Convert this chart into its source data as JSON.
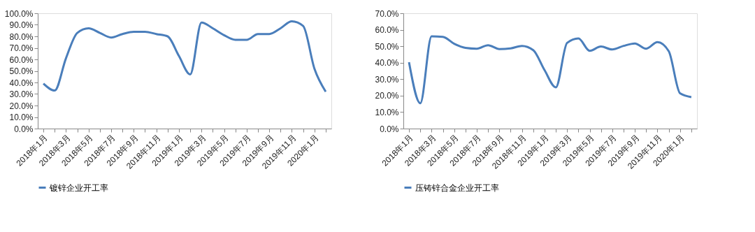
{
  "chart_data": [
    {
      "type": "line",
      "categories": [
        "2018年1月",
        null,
        "2018年3月",
        null,
        "2018年5月",
        null,
        "2018年7月",
        null,
        "2018年9月",
        null,
        "2018年11月",
        null,
        "2019年1月",
        null,
        "2019年3月",
        null,
        "2019年5月",
        null,
        "2019年7月",
        null,
        "2019年9月",
        null,
        "2019年11月",
        null,
        "2020年1月",
        null
      ],
      "series": [
        {
          "name": "镀锌企业开工率",
          "color": "#4a7ebb",
          "values": [
            39,
            33,
            61,
            83,
            87,
            83,
            79,
            82,
            84,
            84,
            82,
            80,
            63,
            47,
            92,
            87,
            81,
            77,
            77,
            82,
            82,
            87,
            93,
            89,
            52,
            32
          ]
        }
      ],
      "ylim": [
        0,
        100
      ],
      "yticks": [
        {
          "value": 0,
          "label": "0.0%"
        },
        {
          "value": 10,
          "label": "10.0%"
        },
        {
          "value": 20,
          "label": "20.0%"
        },
        {
          "value": 30,
          "label": "30.0%"
        },
        {
          "value": 40,
          "label": "40.0%"
        },
        {
          "value": 50,
          "label": "50.0%"
        },
        {
          "value": 60,
          "label": "60.0%"
        },
        {
          "value": 70,
          "label": "70.0%"
        },
        {
          "value": 80,
          "label": "80.0%"
        },
        {
          "value": 90,
          "label": "90.0%"
        },
        {
          "value": 100,
          "label": "100.0%"
        }
      ],
      "grid": false,
      "legend": "bottom",
      "marker": "none",
      "line_style": "solid"
    },
    {
      "type": "line",
      "categories": [
        "2018年1月",
        null,
        "2018年3月",
        null,
        "2018年5月",
        null,
        "2018年7月",
        null,
        "2018年9月",
        null,
        "2018年11月",
        null,
        "2019年1月",
        null,
        "2019年3月",
        null,
        "2019年5月",
        null,
        "2019年7月",
        null,
        "2019年9月",
        null,
        "2019年11月",
        null,
        "2020年1月",
        null
      ],
      "series": [
        {
          "name": "压铸锌合金企业开工率",
          "color": "#4a7ebb",
          "values": [
            40.3,
            15.4,
            56,
            55.7,
            51.5,
            49,
            48.5,
            50.6,
            48.3,
            48.7,
            50.2,
            47.6,
            35.5,
            25,
            52,
            54.7,
            47.2,
            49.8,
            48,
            50.2,
            51.7,
            48.5,
            52.5,
            47,
            21.4,
            19.1
          ]
        }
      ],
      "ylim": [
        0,
        70
      ],
      "yticks": [
        {
          "value": 0,
          "label": "0.0%"
        },
        {
          "value": 10,
          "label": "10.0%"
        },
        {
          "value": 20,
          "label": "20.0%"
        },
        {
          "value": 30,
          "label": "30.0%"
        },
        {
          "value": 40,
          "label": "40.0%"
        },
        {
          "value": 50,
          "label": "50.0%"
        },
        {
          "value": 60,
          "label": "60.0%"
        },
        {
          "value": 70,
          "label": "70.0%"
        }
      ],
      "grid": false,
      "legend": "bottom",
      "marker": "none",
      "line_style": "solid"
    }
  ]
}
